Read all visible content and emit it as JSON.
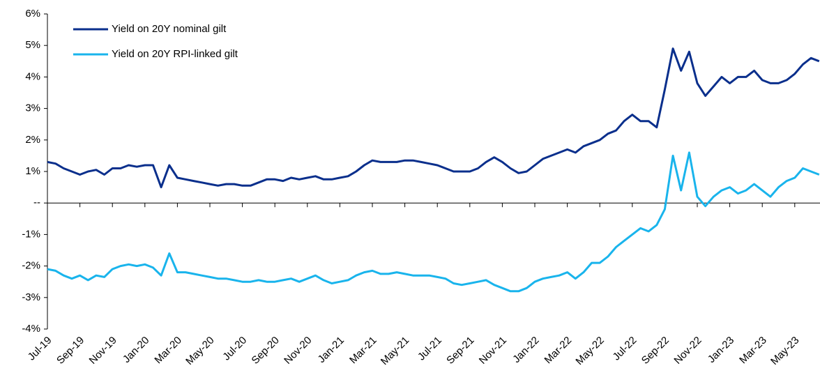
{
  "chart_data": {
    "type": "line",
    "categories": [
      "Jul-19",
      null,
      null,
      null,
      "Sep-19",
      null,
      null,
      null,
      "Nov-19",
      null,
      null,
      null,
      "Jan-20",
      null,
      null,
      null,
      "Mar-20",
      null,
      null,
      null,
      "May-20",
      null,
      null,
      null,
      "Jul-20",
      null,
      null,
      null,
      "Sep-20",
      null,
      null,
      null,
      "Nov-20",
      null,
      null,
      null,
      "Jan-21",
      null,
      null,
      null,
      "Mar-21",
      null,
      null,
      null,
      "May-21",
      null,
      null,
      null,
      "Jul-21",
      null,
      null,
      null,
      "Sep-21",
      null,
      null,
      null,
      "Nov-21",
      null,
      null,
      null,
      "Jan-22",
      null,
      null,
      null,
      "Mar-22",
      null,
      null,
      null,
      "May-22",
      null,
      null,
      null,
      "Jul-22",
      null,
      null,
      null,
      "Sep-22",
      null,
      null,
      null,
      "Nov-22",
      null,
      null,
      null,
      "Jan-23",
      null,
      null,
      null,
      "Mar-23",
      null,
      null,
      null,
      "May-23",
      null,
      null,
      null
    ],
    "series": [
      {
        "name": "Yield on 20Y nominal gilt",
        "color": "#0a2f8c",
        "values": [
          1.3,
          1.25,
          1.1,
          1.0,
          0.9,
          1.0,
          1.05,
          0.9,
          1.1,
          1.1,
          1.2,
          1.15,
          1.2,
          1.2,
          0.5,
          1.2,
          0.8,
          0.75,
          0.7,
          0.65,
          0.6,
          0.55,
          0.6,
          0.6,
          0.55,
          0.55,
          0.65,
          0.75,
          0.75,
          0.7,
          0.8,
          0.75,
          0.8,
          0.85,
          0.75,
          0.75,
          0.8,
          0.85,
          1.0,
          1.2,
          1.35,
          1.3,
          1.3,
          1.3,
          1.35,
          1.35,
          1.3,
          1.25,
          1.2,
          1.1,
          1.0,
          1.0,
          1.0,
          1.1,
          1.3,
          1.45,
          1.3,
          1.1,
          0.95,
          1.0,
          1.2,
          1.4,
          1.5,
          1.6,
          1.7,
          1.6,
          1.8,
          1.9,
          2.0,
          2.2,
          2.3,
          2.6,
          2.8,
          2.6,
          2.6,
          2.4,
          3.6,
          4.9,
          4.2,
          4.8,
          3.8,
          3.4,
          3.7,
          4.0,
          3.8,
          4.0,
          4.0,
          4.2,
          3.9,
          3.8,
          3.8,
          3.9,
          4.1,
          4.4,
          4.6,
          4.5
        ]
      },
      {
        "name": "Yield on 20Y RPI-linked gilt",
        "color": "#19b4ec",
        "values": [
          -2.1,
          -2.15,
          -2.3,
          -2.4,
          -2.3,
          -2.45,
          -2.3,
          -2.35,
          -2.1,
          -2.0,
          -1.95,
          -2.0,
          -1.95,
          -2.05,
          -2.3,
          -1.6,
          -2.2,
          -2.2,
          -2.25,
          -2.3,
          -2.35,
          -2.4,
          -2.4,
          -2.45,
          -2.5,
          -2.5,
          -2.45,
          -2.5,
          -2.5,
          -2.45,
          -2.4,
          -2.5,
          -2.4,
          -2.3,
          -2.45,
          -2.55,
          -2.5,
          -2.45,
          -2.3,
          -2.2,
          -2.15,
          -2.25,
          -2.25,
          -2.2,
          -2.25,
          -2.3,
          -2.3,
          -2.3,
          -2.35,
          -2.4,
          -2.55,
          -2.6,
          -2.55,
          -2.5,
          -2.45,
          -2.6,
          -2.7,
          -2.8,
          -2.8,
          -2.7,
          -2.5,
          -2.4,
          -2.35,
          -2.3,
          -2.2,
          -2.4,
          -2.2,
          -1.9,
          -1.9,
          -1.7,
          -1.4,
          -1.2,
          -1.0,
          -0.8,
          -0.9,
          -0.7,
          -0.2,
          1.5,
          0.4,
          1.6,
          0.2,
          -0.1,
          0.2,
          0.4,
          0.5,
          0.3,
          0.4,
          0.6,
          0.4,
          0.2,
          0.5,
          0.7,
          0.8,
          1.1,
          1.0,
          0.9
        ]
      }
    ],
    "ylim": [
      -4,
      6
    ],
    "yticks": [
      {
        "value": -4,
        "label": "-4%"
      },
      {
        "value": -3,
        "label": "-3%"
      },
      {
        "value": -2,
        "label": "-2%"
      },
      {
        "value": -1,
        "label": "-1%"
      },
      {
        "value": 0,
        "label": "--"
      },
      {
        "value": 1,
        "label": "1%"
      },
      {
        "value": 2,
        "label": "2%"
      },
      {
        "value": 3,
        "label": "3%"
      },
      {
        "value": 4,
        "label": "4%"
      },
      {
        "value": 5,
        "label": "5%"
      },
      {
        "value": 6,
        "label": "6%"
      }
    ],
    "legend": "top-left"
  }
}
